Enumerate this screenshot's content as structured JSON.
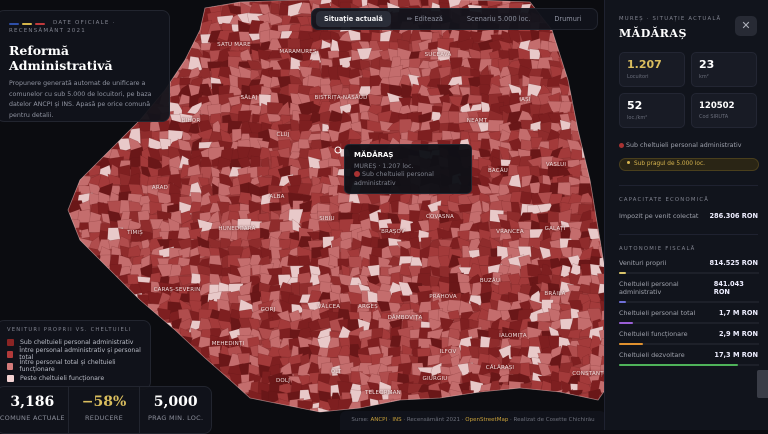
{
  "intro": {
    "eyebrow": "DATE OFICIALE · RECENSĂMÂNT 2021",
    "title": "Reformă Administrativă",
    "description": "Propunere generată automat de unificare a comunelor cu sub 5.000 de locuitori, pe baza datelor ANCPI și INS. Apasă pe orice comună pentru detalii.",
    "flag_colors": [
      "#2e4fa8",
      "#d6b64a",
      "#c0393b"
    ]
  },
  "nav": {
    "tabs": [
      {
        "label": "Situație actuală",
        "active": true
      },
      {
        "label": "✏ Editează"
      },
      {
        "label": "Scenariu 5.000 loc."
      },
      {
        "label": "Drumuri"
      },
      {
        "label": "?"
      }
    ]
  },
  "map": {
    "counties": [
      "SATU MARE",
      "MARAMUREȘ",
      "SUCEAVA",
      "SĂLAJ",
      "BISTRIȚA-NĂSĂUD",
      "IAȘI",
      "BIHOR",
      "NEAMȚ",
      "CLUJ",
      "VASLUI",
      "BACĂU",
      "ARAD",
      "ALBA",
      "SIBIU",
      "COVASNA",
      "HUNEDOARA",
      "TIMIȘ",
      "BRAȘOV",
      "VRANCEA",
      "GALAȚI",
      "CARAȘ-SEVERIN",
      "BUZĂU",
      "PRAHOVA",
      "BRĂILA",
      "GORJ",
      "VÂLCEA",
      "ARGEȘ",
      "DÂMBOVIȚA",
      "MEHEDINȚI",
      "IALOMIȚA",
      "ILFOV",
      "DOLJ",
      "OLT",
      "GIURGIU",
      "CĂLĂRAȘI",
      "CONSTANȚA",
      "TELEORMAN"
    ],
    "colors": {
      "sub_personal_admin": "#7e1f20",
      "intre_admin_total": "#a33a3a",
      "intre_total_functionare": "#c46d6d",
      "peste_functionare": "#e8c9c9",
      "background": "#0b0c10"
    }
  },
  "tooltip": {
    "name": "MĂDĂRAȘ",
    "subtitle": "MUREȘ · 1.207 loc.",
    "category": "Sub cheltuieli personal administrativ"
  },
  "legend": {
    "title": "VENITURI PROPRII VS. CHELTUIELI",
    "items": [
      {
        "label": "Sub cheltuieli personal administrativ",
        "color": "#8a2424"
      },
      {
        "label": "Între personal administrativ și personal total",
        "color": "#b23a3a"
      },
      {
        "label": "Între personal total și cheltuieli funcționare",
        "color": "#d47b7b"
      },
      {
        "label": "Peste cheltuieli funcționare",
        "color": "#f3d3d3"
      }
    ]
  },
  "stats": [
    {
      "value": "3,186",
      "label": "COMUNE ACTUALE"
    },
    {
      "value": "−58%",
      "label": "REDUCERE",
      "color": "#d9bd5e"
    },
    {
      "value": "5,000",
      "label": "PRAG MIN. LOC."
    }
  ],
  "credits": {
    "prefix": "Surse:",
    "ancpi": "ANCPI",
    "sep1": " · ",
    "ins": "INS",
    "census": " · Recensământ 2021 · ",
    "osm": "OpenStreetMap",
    "author": " · Realizat de Cosette Chichirău"
  },
  "panel": {
    "eyebrow": "MUREȘ · SITUAȚIE ACTUALĂ",
    "title": "MĂDĂRAȘ",
    "close": "✕",
    "cards": [
      {
        "value": "1.207",
        "label": "Locuitori"
      },
      {
        "value": "23",
        "label": "km²"
      },
      {
        "value": "52",
        "label": "loc./km²"
      },
      {
        "value": "120502",
        "label": "Cod SIRUTA"
      }
    ],
    "category": "Sub cheltuieli personal administrativ",
    "badge": "Sub pragul de 5.000 loc.",
    "economic": {
      "title": "CAPACITATE ECONOMICĂ",
      "label": "Impozit pe venit colectat",
      "value": "286.306 RON"
    },
    "fiscal": {
      "title": "AUTONOMIE FISCALĂ",
      "rows": [
        {
          "label": "Venituri proprii",
          "value": "814.525 RON",
          "fill": 0.05,
          "color": "#d9c36a"
        },
        {
          "label": "Cheltuieli personal administrativ",
          "value": "841.043 RON",
          "fill": 0.05,
          "color": "#6f6fd8"
        },
        {
          "label": "Cheltuieli personal total",
          "value": "1,7 M RON",
          "fill": 0.1,
          "color": "#9a5fd6"
        },
        {
          "label": "Cheltuieli funcționare",
          "value": "2,9 M RON",
          "fill": 0.17,
          "color": "#e0912f"
        },
        {
          "label": "Cheltuieli dezvoltare",
          "value": "17,3 M RON",
          "fill": 0.85,
          "color": "#4fb35a"
        }
      ]
    }
  }
}
